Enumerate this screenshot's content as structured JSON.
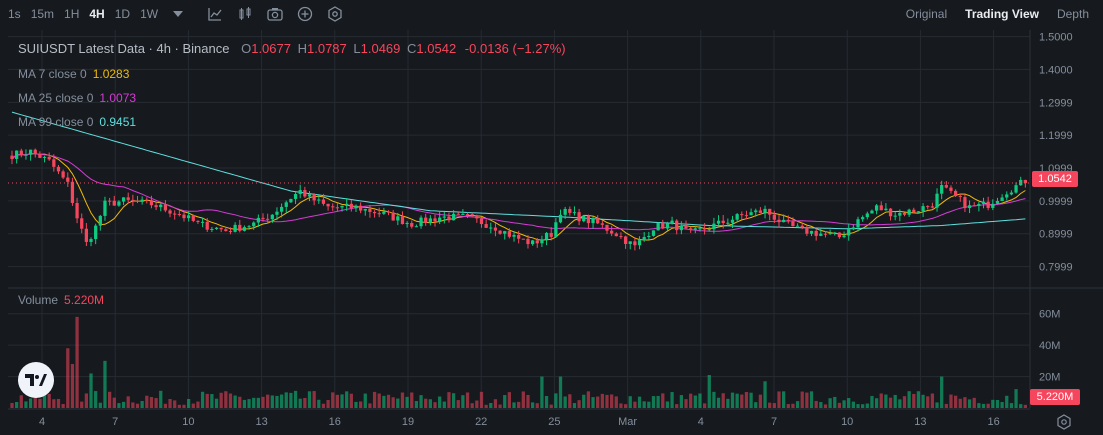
{
  "toolbar": {
    "timeframes": [
      "1s",
      "15m",
      "1H",
      "4H",
      "1D",
      "1W"
    ],
    "active_timeframe": "4H",
    "icons": [
      "chevron-down-icon",
      "indicators-icon",
      "candlestick-icon",
      "camera-icon",
      "plus-circle-icon",
      "settings-gear-icon"
    ]
  },
  "views": {
    "original": "Original",
    "trading_view": "Trading View",
    "depth": "Depth",
    "active": "Trading View"
  },
  "legend": {
    "title": "SUIUSDT Latest Data · 4h · Binance",
    "open_label": "O",
    "open": "1.0677",
    "high_label": "H",
    "high": "1.0787",
    "low_label": "L",
    "low": "1.0469",
    "close_label": "C",
    "close": "1.0542",
    "change": "-0.0136 (−1.27%)"
  },
  "ma": [
    {
      "label": "MA 7 close 0",
      "value": "1.0283",
      "color": "#f0b90b"
    },
    {
      "label": "MA 25 close 0",
      "value": "1.0073",
      "color": "#d63ad6"
    },
    {
      "label": "MA 99 close 0",
      "value": "0.9451",
      "color": "#5ee0de"
    }
  ],
  "volume": {
    "label": "Volume",
    "value": "5.220M"
  },
  "price_axis": [
    "1.5000",
    "1.4000",
    "1.2999",
    "1.1999",
    "1.0999",
    "0.9999",
    "0.8999",
    "0.7999"
  ],
  "volume_axis": [
    "60M",
    "40M",
    "20M"
  ],
  "current_price_tag": "1.0542",
  "current_volume_tag": "5.220M",
  "date_axis": [
    "4",
    "7",
    "10",
    "13",
    "16",
    "19",
    "22",
    "25",
    "Mar",
    "4",
    "7",
    "10",
    "13",
    "16"
  ],
  "colors": {
    "up": "#0ecb81",
    "down": "#f6465d",
    "bg": "#161a1e",
    "grid": "#262b32"
  },
  "chart_data": {
    "type": "candlestick",
    "price_range": [
      0.75,
      1.52
    ],
    "volume_range": [
      0,
      70
    ],
    "volume_unit": "M",
    "last_close": 1.0542,
    "waypoints": [
      [
        0,
        1.14
      ],
      [
        4,
        1.15
      ],
      [
        8,
        1.12
      ],
      [
        12,
        1.05
      ],
      [
        14,
        0.95
      ],
      [
        16,
        0.87
      ],
      [
        18,
        0.92
      ],
      [
        20,
        0.99
      ],
      [
        24,
        1.0
      ],
      [
        30,
        0.99
      ],
      [
        36,
        0.96
      ],
      [
        40,
        0.93
      ],
      [
        46,
        0.91
      ],
      [
        52,
        0.93
      ],
      [
        56,
        0.96
      ],
      [
        60,
        1.01
      ],
      [
        62,
        1.03
      ],
      [
        64,
        1.01
      ],
      [
        68,
        0.98
      ],
      [
        74,
        0.98
      ],
      [
        80,
        0.96
      ],
      [
        86,
        0.93
      ],
      [
        92,
        0.95
      ],
      [
        98,
        0.95
      ],
      [
        104,
        0.92
      ],
      [
        108,
        0.89
      ],
      [
        112,
        0.87
      ],
      [
        116,
        0.9
      ],
      [
        118,
        0.97
      ],
      [
        122,
        0.95
      ],
      [
        126,
        0.93
      ],
      [
        130,
        0.9
      ],
      [
        134,
        0.86
      ],
      [
        138,
        0.92
      ],
      [
        142,
        0.93
      ],
      [
        146,
        0.9
      ],
      [
        150,
        0.92
      ],
      [
        154,
        0.94
      ],
      [
        158,
        0.96
      ],
      [
        162,
        0.97
      ],
      [
        166,
        0.93
      ],
      [
        170,
        0.91
      ],
      [
        174,
        0.9
      ],
      [
        178,
        0.89
      ],
      [
        182,
        0.94
      ],
      [
        186,
        0.98
      ],
      [
        190,
        0.96
      ],
      [
        194,
        0.97
      ],
      [
        198,
        0.99
      ],
      [
        200,
        1.04
      ],
      [
        202,
        1.02
      ],
      [
        206,
        0.98
      ],
      [
        210,
        0.99
      ],
      [
        214,
        1.03
      ],
      [
        218,
        1.06
      ]
    ],
    "ma99_waypoints": [
      [
        0,
        1.27
      ],
      [
        30,
        1.15
      ],
      [
        60,
        1.03
      ],
      [
        90,
        0.97
      ],
      [
        120,
        0.95
      ],
      [
        150,
        0.925
      ],
      [
        180,
        0.915
      ],
      [
        200,
        0.925
      ],
      [
        218,
        0.945
      ]
    ],
    "volume_spikes": [
      [
        14,
        58
      ],
      [
        12,
        38
      ],
      [
        13,
        28
      ],
      [
        20,
        30
      ],
      [
        17,
        22
      ],
      [
        114,
        20
      ],
      [
        118,
        20
      ],
      [
        150,
        21
      ],
      [
        162,
        17
      ],
      [
        200,
        20
      ],
      [
        216,
        12
      ]
    ]
  }
}
